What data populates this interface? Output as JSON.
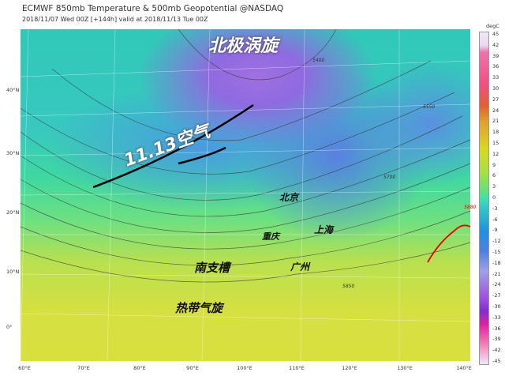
{
  "header": {
    "title": "ECMWF 850mb Temperature & 500mb Geopotential @NASDAQ",
    "subtitle": "2018/11/07 Wed 00Z [+144h] valid at 2018/11/13 Tue 00Z"
  },
  "annotations": {
    "polar_vortex": "北极涡旋",
    "air": "11.13空气",
    "beijing": "北京",
    "chongqing": "重庆",
    "shanghai": "上海",
    "guangzhou": "广州",
    "trough": "南支槽",
    "cyclone": "热带气旋"
  },
  "lat_labels": [
    "40°N",
    "30°N",
    "20°N",
    "10°N",
    "0°"
  ],
  "lon_labels": [
    "60°E",
    "70°E",
    "80°E",
    "90°E",
    "100°E",
    "110°E",
    "120°E",
    "130°E",
    "140°E"
  ],
  "colorbar": {
    "unit": "degC",
    "ticks": [
      "45",
      "42",
      "39",
      "36",
      "33",
      "30",
      "27",
      "24",
      "21",
      "18",
      "15",
      "12",
      "9",
      "6",
      "3",
      "0",
      "-3",
      "-6",
      "-9",
      "-12",
      "-15",
      "-18",
      "-21",
      "-24",
      "-27",
      "-30",
      "-33",
      "-36",
      "-39",
      "-42",
      "-45"
    ]
  },
  "contour_labels": [
    "5400",
    "5550",
    "5700",
    "5850",
    "5880"
  ]
}
